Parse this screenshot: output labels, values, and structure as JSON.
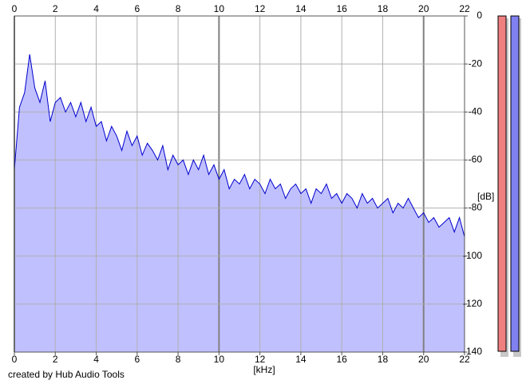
{
  "chart_data": {
    "type": "area",
    "xlabel": "[kHz]",
    "ylabel": "[dB]",
    "credit": "created by Hub Audio Tools",
    "x": [
      0,
      0.25,
      0.5,
      0.75,
      1,
      1.25,
      1.5,
      1.75,
      2,
      2.25,
      2.5,
      2.75,
      3,
      3.25,
      3.5,
      3.75,
      4,
      4.25,
      4.5,
      4.75,
      5,
      5.25,
      5.5,
      5.75,
      6,
      6.25,
      6.5,
      6.75,
      7,
      7.25,
      7.5,
      7.75,
      8,
      8.25,
      8.5,
      8.75,
      9,
      9.25,
      9.5,
      9.75,
      10,
      10.25,
      10.5,
      10.75,
      11,
      11.25,
      11.5,
      11.75,
      12,
      12.25,
      12.5,
      12.75,
      13,
      13.25,
      13.5,
      13.75,
      14,
      14.25,
      14.5,
      14.75,
      15,
      15.25,
      15.5,
      15.75,
      16,
      16.25,
      16.5,
      16.75,
      17,
      17.25,
      17.5,
      17.75,
      18,
      18.25,
      18.5,
      18.75,
      19,
      19.25,
      19.5,
      19.75,
      20,
      20.25,
      20.5,
      20.75,
      21,
      21.25,
      21.5,
      21.75,
      22
    ],
    "values": [
      -64,
      -38,
      -32,
      -16,
      -30,
      -36,
      -27,
      -44,
      -36,
      -34,
      -40,
      -36,
      -42,
      -36,
      -44,
      -38,
      -46,
      -44,
      -52,
      -46,
      -50,
      -56,
      -48,
      -54,
      -50,
      -58,
      -53,
      -56,
      -60,
      -54,
      -64,
      -58,
      -62,
      -60,
      -66,
      -60,
      -64,
      -58,
      -66,
      -62,
      -68,
      -64,
      -72,
      -68,
      -70,
      -66,
      -72,
      -68,
      -70,
      -74,
      -68,
      -72,
      -70,
      -76,
      -72,
      -70,
      -74,
      -72,
      -78,
      -72,
      -74,
      -70,
      -76,
      -74,
      -78,
      -74,
      -76,
      -80,
      -74,
      -78,
      -76,
      -80,
      -78,
      -76,
      -82,
      -78,
      -80,
      -76,
      -80,
      -84,
      -82,
      -86,
      -84,
      -88,
      -86,
      -84,
      -90,
      -84,
      -92
    ],
    "color": "#0000cc",
    "fill": "#c0c0ff",
    "xlim": [
      0,
      22
    ],
    "xticks": [
      0,
      2,
      4,
      6,
      8,
      10,
      12,
      14,
      16,
      18,
      20,
      22
    ],
    "ylim": [
      -140,
      0
    ],
    "yticks": [
      0,
      -20,
      -40,
      -60,
      -80,
      -100,
      -120,
      -140
    ],
    "grid": true
  }
}
